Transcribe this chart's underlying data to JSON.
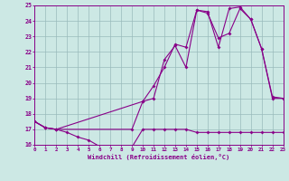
{
  "xlabel": "Windchill (Refroidissement éolien,°C)",
  "background_color": "#cce8e4",
  "grid_color": "#99bbbb",
  "line_color": "#880088",
  "xlim": [
    0,
    23
  ],
  "ylim": [
    16,
    25
  ],
  "xticks": [
    0,
    1,
    2,
    3,
    4,
    5,
    6,
    7,
    8,
    9,
    10,
    11,
    12,
    13,
    14,
    15,
    16,
    17,
    18,
    19,
    20,
    21,
    22,
    23
  ],
  "yticks": [
    16,
    17,
    18,
    19,
    20,
    21,
    22,
    23,
    24,
    25
  ],
  "line1_x": [
    0,
    1,
    2,
    3,
    4,
    5,
    6,
    7,
    8,
    9,
    10,
    11,
    12,
    13,
    14,
    15,
    16,
    17,
    18,
    19,
    20,
    21,
    22,
    23
  ],
  "line1_y": [
    17.5,
    17.1,
    17.0,
    16.8,
    16.5,
    16.3,
    15.9,
    15.8,
    15.8,
    15.85,
    17.0,
    17.0,
    17.0,
    17.0,
    17.0,
    16.8,
    16.8,
    16.8,
    16.8,
    16.8,
    16.8,
    16.8,
    16.8,
    16.8
  ],
  "line2_x": [
    0,
    1,
    2,
    9,
    10,
    11,
    12,
    13,
    14,
    15,
    16,
    17,
    18,
    19,
    20,
    21,
    22,
    23
  ],
  "line2_y": [
    17.5,
    17.1,
    17.0,
    17.0,
    18.8,
    19.0,
    21.5,
    22.4,
    21.0,
    24.7,
    24.6,
    22.3,
    24.8,
    24.9,
    24.1,
    22.2,
    19.0,
    19.0
  ],
  "line3_x": [
    0,
    1,
    2,
    10,
    11,
    12,
    13,
    14,
    15,
    16,
    17,
    18,
    19,
    20,
    21,
    22,
    23
  ],
  "line3_y": [
    17.5,
    17.1,
    17.0,
    18.8,
    19.8,
    21.0,
    22.5,
    22.3,
    24.7,
    24.5,
    22.9,
    23.2,
    24.8,
    24.1,
    22.2,
    19.1,
    19.0
  ]
}
